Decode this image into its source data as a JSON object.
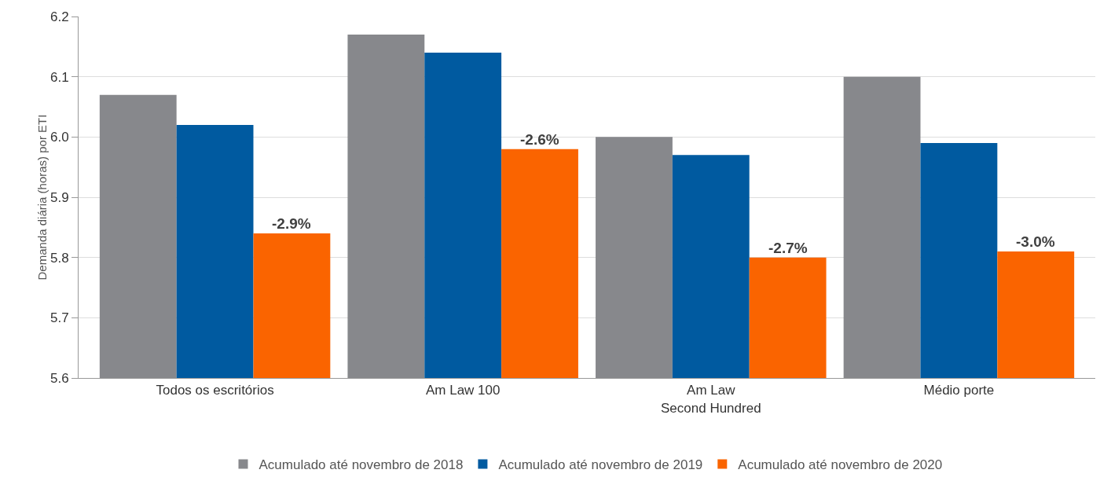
{
  "chart_data": {
    "type": "bar",
    "ylabel": "Demanda diária (horas) por ETI",
    "categories": [
      "Todos os escritórios",
      "Am Law 100",
      "Am Law\nSecond Hundred",
      "Médio porte"
    ],
    "series": [
      {
        "name": "Acumulado até novembro de 2018",
        "color": "#87888c",
        "values": [
          6.07,
          6.17,
          6.0,
          6.1
        ]
      },
      {
        "name": "Acumulado até novembro de 2019",
        "color": "#005aa0",
        "values": [
          6.02,
          6.14,
          5.97,
          5.99
        ]
      },
      {
        "name": "Acumulado até novembro de 2020",
        "color": "#fa6400",
        "values": [
          5.84,
          5.98,
          5.8,
          5.81
        ]
      }
    ],
    "annotations": [
      "-2.9%",
      "-2.6%",
      "-2.7%",
      "-3.0%"
    ],
    "ylim": [
      5.6,
      6.2
    ],
    "yticks": [
      5.6,
      5.7,
      5.8,
      5.9,
      {
        "value": 6,
        "label": "6.0"
      },
      6.1,
      6.2
    ],
    "grid": "y",
    "legend": "bottom"
  }
}
